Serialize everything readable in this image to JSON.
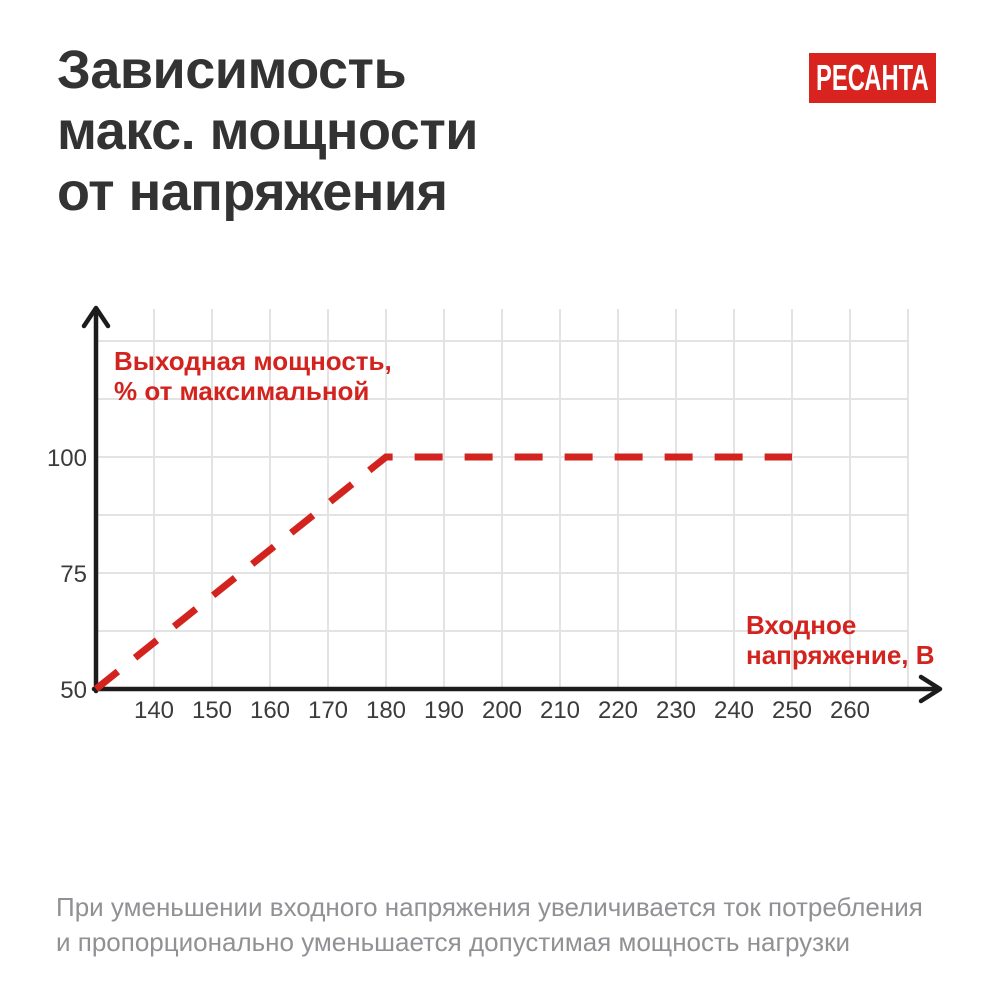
{
  "header": {
    "title_lines": [
      "Зависимость",
      "макс. мощности",
      "от напряжения"
    ],
    "logo_text": "РЕСАНТА"
  },
  "chart_data": {
    "type": "line",
    "title": "Зависимость макс. мощности от напряжения",
    "xlabel": "Входное напряжение, В",
    "ylabel": "Выходная мощность, % от максимальной",
    "x_ticks": [
      140,
      150,
      160,
      170,
      180,
      190,
      200,
      210,
      220,
      230,
      240,
      250,
      260
    ],
    "y_ticks": [
      50,
      75,
      100
    ],
    "xlim": [
      130,
      270
    ],
    "ylim": [
      50,
      132
    ],
    "grid": true,
    "grid_x_step": 10,
    "grid_y_step": 12.5,
    "line_style": "dashed",
    "series": [
      {
        "name": "Выходная мощность, % от максимальной",
        "points": [
          [
            130,
            50
          ],
          [
            180,
            100
          ],
          [
            250,
            100
          ]
        ]
      }
    ],
    "legend": "none"
  },
  "labels": {
    "y_axis_line1": "Выходная мощность,",
    "y_axis_line2": "% от максимальной",
    "x_axis_line1": "Входное",
    "x_axis_line2": "напряжение, В"
  },
  "note": {
    "line1": "При уменьшении входного напряжения увеличивается ток потребления",
    "line2": "и пропорционально уменьшается допустимая мощность нагрузки"
  },
  "colors": {
    "background": "#ffffff",
    "title_color": "#333333",
    "accent_red": "#d3231e",
    "logo_red": "#d8231f",
    "axis_black": "#1c1c1c",
    "grid_gray": "#e3e3e3",
    "tick_gray": "#3b3b3b",
    "note_gray": "#909194"
  }
}
